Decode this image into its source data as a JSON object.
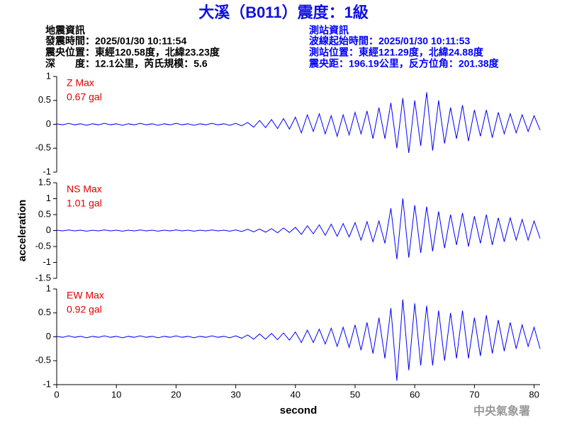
{
  "header": {
    "title": "大溪（B011）震度：1級",
    "left_info": [
      "地震資訊",
      "發震時間：2025/01/30 10:11:54",
      "震央位置：東經120.58度，北緯23.23度",
      "深　　度：12.1公里，芮氏規模：5.6"
    ],
    "right_info": [
      "測站資訊",
      "波線起始時間：2025/01/30 10:11:53",
      "測站位置：東經121.29度，北緯24.88度",
      "震央距：196.19公里，反方位角：201.38度"
    ],
    "agency": "中央氣象署"
  },
  "chart_data": [
    {
      "type": "line",
      "annotation": "Z Max",
      "max_label": "0.67 gal",
      "color": "#0000ff",
      "xlim": [
        0,
        81
      ],
      "ylim": [
        -1,
        1
      ],
      "yticks": [
        1,
        0.5,
        0,
        -0.5,
        -1
      ],
      "x": [
        0,
        1,
        2,
        3,
        4,
        5,
        6,
        7,
        8,
        9,
        10,
        11,
        12,
        13,
        14,
        15,
        16,
        17,
        18,
        19,
        20,
        21,
        22,
        23,
        24,
        25,
        26,
        27,
        28,
        29,
        30,
        31,
        32,
        33,
        34,
        35,
        36,
        37,
        38,
        39,
        40,
        41,
        42,
        43,
        44,
        45,
        46,
        47,
        48,
        49,
        50,
        51,
        52,
        53,
        54,
        55,
        56,
        57,
        58,
        59,
        60,
        61,
        62,
        63,
        64,
        65,
        66,
        67,
        68,
        69,
        70,
        71,
        72,
        73,
        74,
        75,
        76,
        77,
        78,
        79,
        80,
        81
      ],
      "values": [
        0.01,
        -0.01,
        0.02,
        -0.01,
        0.01,
        -0.02,
        0.01,
        -0.01,
        0.02,
        -0.01,
        0.01,
        -0.02,
        0.01,
        -0.01,
        0.02,
        -0.01,
        0.01,
        -0.02,
        0.01,
        -0.01,
        0.02,
        -0.01,
        0.01,
        -0.02,
        0.01,
        -0.01,
        0.02,
        -0.01,
        0.01,
        -0.02,
        0.02,
        -0.03,
        0.04,
        -0.06,
        0.08,
        -0.07,
        0.1,
        -0.09,
        0.12,
        -0.1,
        0.15,
        -0.18,
        0.2,
        -0.15,
        0.22,
        -0.2,
        0.18,
        -0.25,
        0.2,
        -0.22,
        0.25,
        -0.2,
        0.28,
        -0.3,
        0.35,
        -0.3,
        0.45,
        -0.5,
        0.55,
        -0.6,
        0.5,
        -0.45,
        0.67,
        -0.55,
        0.5,
        -0.4,
        0.35,
        -0.3,
        0.4,
        -0.35,
        0.3,
        -0.25,
        0.3,
        -0.28,
        0.25,
        -0.2,
        0.22,
        -0.18,
        0.2,
        -0.15,
        0.18,
        -0.12
      ]
    },
    {
      "type": "line",
      "annotation": "NS Max",
      "max_label": "1.01 gal",
      "color": "#0000ff",
      "xlim": [
        0,
        81
      ],
      "ylim": [
        -1.5,
        1.5
      ],
      "yticks": [
        1.5,
        1,
        0.5,
        0,
        -0.5,
        -1,
        -1.5
      ],
      "ylabel": "acceleration",
      "x": [
        0,
        1,
        2,
        3,
        4,
        5,
        6,
        7,
        8,
        9,
        10,
        11,
        12,
        13,
        14,
        15,
        16,
        17,
        18,
        19,
        20,
        21,
        22,
        23,
        24,
        25,
        26,
        27,
        28,
        29,
        30,
        31,
        32,
        33,
        34,
        35,
        36,
        37,
        38,
        39,
        40,
        41,
        42,
        43,
        44,
        45,
        46,
        47,
        48,
        49,
        50,
        51,
        52,
        53,
        54,
        55,
        56,
        57,
        58,
        59,
        60,
        61,
        62,
        63,
        64,
        65,
        66,
        67,
        68,
        69,
        70,
        71,
        72,
        73,
        74,
        75,
        76,
        77,
        78,
        79,
        80,
        81
      ],
      "values": [
        0.01,
        -0.01,
        0.02,
        -0.01,
        0.01,
        -0.02,
        0.01,
        -0.01,
        0.02,
        -0.01,
        0.01,
        -0.02,
        0.01,
        -0.01,
        0.02,
        -0.01,
        0.01,
        -0.02,
        0.01,
        -0.01,
        0.02,
        -0.01,
        0.01,
        -0.02,
        0.01,
        -0.01,
        0.02,
        -0.01,
        0.01,
        -0.02,
        0.02,
        -0.03,
        0.04,
        -0.04,
        0.05,
        -0.05,
        0.06,
        -0.07,
        0.08,
        -0.06,
        0.1,
        -0.12,
        0.15,
        -0.1,
        0.18,
        -0.15,
        0.2,
        -0.18,
        0.22,
        -0.2,
        0.25,
        -0.3,
        0.28,
        -0.35,
        0.3,
        -0.4,
        0.7,
        -0.9,
        1.01,
        -0.85,
        0.8,
        -0.7,
        0.75,
        -0.65,
        0.6,
        -0.55,
        0.5,
        -0.45,
        0.55,
        -0.5,
        0.45,
        -0.4,
        0.5,
        -0.45,
        0.4,
        -0.35,
        0.4,
        -0.3,
        0.35,
        -0.3,
        0.3,
        -0.25
      ]
    },
    {
      "type": "line",
      "annotation": "EW Max",
      "max_label": "0.92 gal",
      "color": "#0000ff",
      "xlim": [
        0,
        81
      ],
      "ylim": [
        -1,
        1
      ],
      "yticks": [
        1,
        0.5,
        0,
        -0.5,
        -1
      ],
      "xticks": [
        0,
        10,
        20,
        30,
        40,
        50,
        60,
        70,
        80
      ],
      "xlabel": "second",
      "x": [
        0,
        1,
        2,
        3,
        4,
        5,
        6,
        7,
        8,
        9,
        10,
        11,
        12,
        13,
        14,
        15,
        16,
        17,
        18,
        19,
        20,
        21,
        22,
        23,
        24,
        25,
        26,
        27,
        28,
        29,
        30,
        31,
        32,
        33,
        34,
        35,
        36,
        37,
        38,
        39,
        40,
        41,
        42,
        43,
        44,
        45,
        46,
        47,
        48,
        49,
        50,
        51,
        52,
        53,
        54,
        55,
        56,
        57,
        58,
        59,
        60,
        61,
        62,
        63,
        64,
        65,
        66,
        67,
        68,
        69,
        70,
        71,
        72,
        73,
        74,
        75,
        76,
        77,
        78,
        79,
        80,
        81
      ],
      "values": [
        0.01,
        -0.01,
        0.02,
        -0.01,
        0.01,
        -0.02,
        0.01,
        -0.01,
        0.02,
        -0.01,
        0.01,
        -0.02,
        0.01,
        -0.01,
        0.02,
        -0.01,
        0.01,
        -0.02,
        0.01,
        -0.01,
        0.02,
        -0.01,
        0.01,
        -0.02,
        0.01,
        -0.01,
        0.02,
        -0.01,
        0.01,
        -0.02,
        0.02,
        -0.03,
        0.04,
        -0.05,
        0.06,
        -0.05,
        0.07,
        -0.06,
        0.08,
        -0.07,
        0.1,
        -0.12,
        0.14,
        -0.12,
        0.16,
        -0.15,
        0.18,
        -0.2,
        0.2,
        -0.22,
        0.25,
        -0.28,
        0.3,
        -0.35,
        0.4,
        -0.45,
        0.6,
        -0.92,
        0.78,
        -0.7,
        0.7,
        -0.6,
        0.65,
        -0.6,
        0.55,
        -0.5,
        0.5,
        -0.45,
        0.55,
        -0.45,
        0.4,
        -0.4,
        0.45,
        -0.35,
        0.35,
        -0.3,
        0.3,
        -0.25,
        0.25,
        -0.2,
        0.2,
        -0.25
      ]
    }
  ]
}
